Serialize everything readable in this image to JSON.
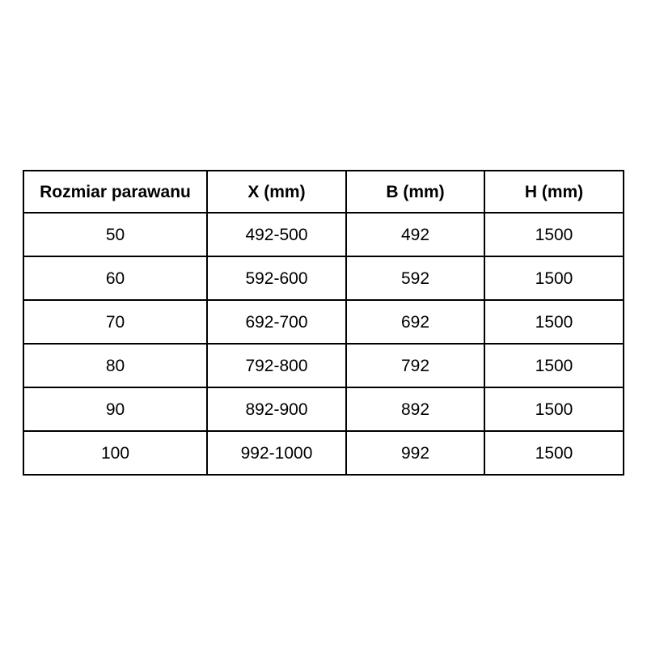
{
  "colors": {
    "background": "#ffffff",
    "border": "#000000",
    "text": "#000000"
  },
  "table": {
    "columns": [
      "Rozmiar parawanu",
      "X (mm)",
      "B (mm)",
      "H (mm)"
    ],
    "rows": [
      [
        "50",
        "492-500",
        "492",
        "1500"
      ],
      [
        "60",
        "592-600",
        "592",
        "1500"
      ],
      [
        "70",
        "692-700",
        "692",
        "1500"
      ],
      [
        "80",
        "792-800",
        "792",
        "1500"
      ],
      [
        "90",
        "892-900",
        "892",
        "1500"
      ],
      [
        "100",
        "992-1000",
        "992",
        "1500"
      ]
    ]
  },
  "chart_data": {
    "type": "table",
    "title": "",
    "columns": [
      "Rozmiar parawanu",
      "X (mm)",
      "B (mm)",
      "H (mm)"
    ],
    "rows": [
      [
        "50",
        "492-500",
        "492",
        "1500"
      ],
      [
        "60",
        "592-600",
        "592",
        "1500"
      ],
      [
        "70",
        "692-700",
        "692",
        "1500"
      ],
      [
        "80",
        "792-800",
        "792",
        "1500"
      ],
      [
        "90",
        "892-900",
        "892",
        "1500"
      ],
      [
        "100",
        "992-1000",
        "992",
        "1500"
      ]
    ]
  }
}
